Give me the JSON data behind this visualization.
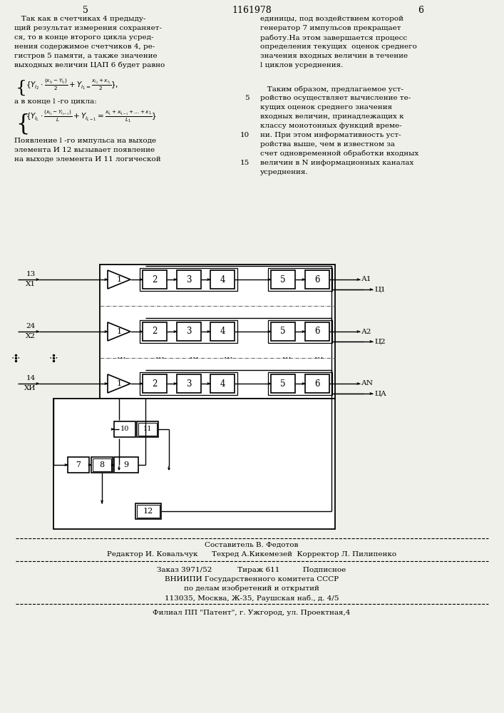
{
  "bg_color": "#f0f0eb",
  "page_title": "1161978",
  "page_num_left": "5",
  "page_num_right": "6",
  "ch_labels": [
    "X1",
    "X2",
    "ХИ"
  ],
  "ch_nums": [
    "13",
    "24",
    "14"
  ],
  "ch_out_a": [
    "А1",
    "А2",
    "АN"
  ],
  "ch_out_u": [
    "Ц1",
    "Ц2",
    "ЦА"
  ],
  "left_text_lines": [
    "   Так как в счетчиках 4 предыду-",
    "щий результат измерения сохраняет-",
    "ся, то в конце второго цикла усред-",
    "нения содержимое счетчиков 4, ре-",
    "гистров 5 памяти, а также значение",
    "выходных величин ЦАП 6 будет равно"
  ],
  "right_text_lines": [
    "единицы, под воздействием которой",
    "генератор 7 импульсов прекращает",
    "работу.На этом завершается процесс",
    "определения текущих  оценок среднего",
    "значения входных величин в течение",
    "l циклов усреднения."
  ],
  "right_text2_lines": [
    "   Таким образом, предлагаемое уст-",
    "ройство осуществляет вычисление те-",
    "кущих оценок среднего значения",
    "входных величин, принадлежащих к",
    "классу монотонных функций време-",
    "ни. При этом информативность уст-",
    "ройства выше, чем в известном за",
    "счет одновременной обработки входных",
    "величин в N информационных каналах",
    "усреднения."
  ],
  "bottom_left_lines": [
    "Появление l -го импульса на выходе",
    "элемента И 12 вызывает появление",
    "на выходе элемента И 11 логической"
  ]
}
